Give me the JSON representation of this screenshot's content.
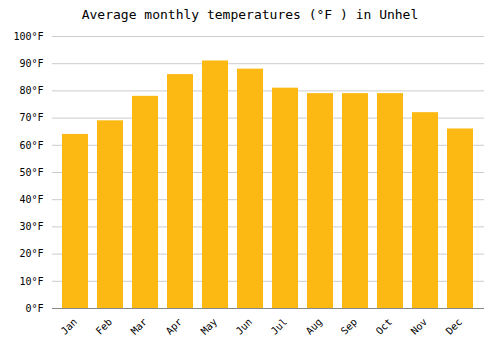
{
  "chart_data": {
    "type": "bar",
    "title": "Average monthly temperatures (°F ) in Unhel",
    "categories": [
      "Jan",
      "Feb",
      "Mar",
      "Apr",
      "May",
      "Jun",
      "Jul",
      "Aug",
      "Sep",
      "Oct",
      "Nov",
      "Dec"
    ],
    "values": [
      64,
      69,
      78,
      86,
      91,
      88,
      81,
      79,
      79,
      79,
      72,
      66
    ],
    "color": "#FDB913",
    "ylim": [
      0,
      100
    ],
    "yticks": [
      {
        "value": 0,
        "label": "0°F"
      },
      {
        "value": 10,
        "label": "10°F"
      },
      {
        "value": 20,
        "label": "20°F"
      },
      {
        "value": 30,
        "label": "30°F"
      },
      {
        "value": 40,
        "label": "40°F"
      },
      {
        "value": 50,
        "label": "50°F"
      },
      {
        "value": 60,
        "label": "60°F"
      },
      {
        "value": 70,
        "label": "70°F"
      },
      {
        "value": 80,
        "label": "80°F"
      },
      {
        "value": 90,
        "label": "90°F"
      },
      {
        "value": 100,
        "label": "100°F"
      }
    ],
    "grid": true
  }
}
